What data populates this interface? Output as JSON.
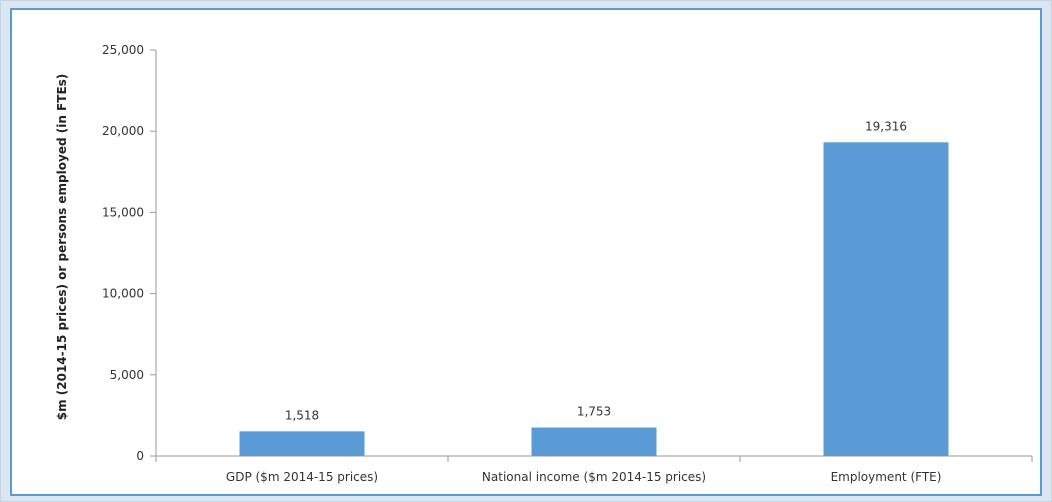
{
  "chart_data": {
    "type": "bar",
    "ylabel": "$m (2014-15 prices) or persons employed (in FTEs)",
    "xlabel": "",
    "title": "",
    "categories": [
      "GDP ($m 2014-15 prices)",
      "National income ($m 2014-15 prices)",
      "Employment (FTE)"
    ],
    "values": [
      1518,
      1753,
      19316
    ],
    "data_labels": [
      "1,518",
      "1,753",
      "19,316"
    ],
    "ylim": [
      0,
      25000
    ],
    "yticks": [
      0,
      5000,
      10000,
      15000,
      20000,
      25000
    ],
    "ytick_labels": [
      "0",
      "5,000",
      "10,000",
      "15,000",
      "20,000",
      "25,000"
    ],
    "grid": false,
    "bar_color": "#5b9bd5",
    "border_color": "#5b9bd5",
    "background_color": "#dbe6f1"
  }
}
